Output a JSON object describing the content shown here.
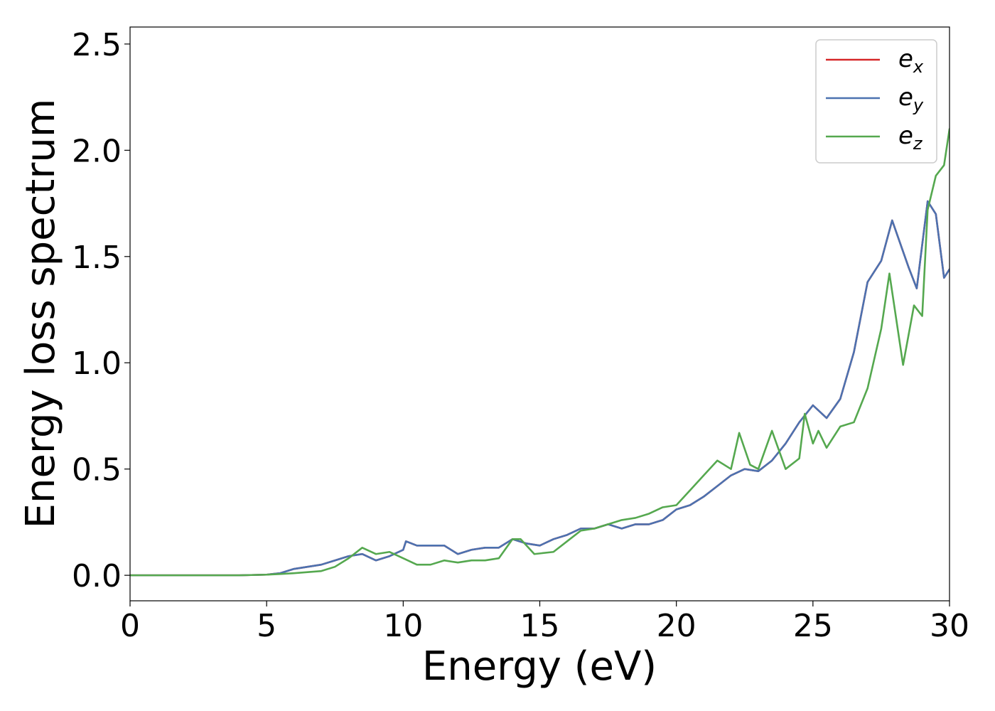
{
  "chart_data": {
    "type": "line",
    "title": "",
    "xlabel": "Energy (eV)",
    "ylabel": "Energy loss spectrum",
    "xlim": [
      0,
      30
    ],
    "ylim": [
      -0.12,
      2.58
    ],
    "xticks": [
      0,
      5,
      10,
      15,
      20,
      25,
      30
    ],
    "xtick_labels": [
      "0",
      "5",
      "10",
      "15",
      "20",
      "25",
      "30"
    ],
    "yticks": [
      0.0,
      0.5,
      1.0,
      1.5,
      2.0,
      2.5
    ],
    "ytick_labels": [
      "0.0",
      "0.5",
      "1.0",
      "1.5",
      "2.0",
      "2.5"
    ],
    "grid": false,
    "legend_position": "top-right",
    "series": [
      {
        "name": "e_x",
        "legend_main": "e",
        "legend_sub": "x",
        "color": "#d62728",
        "x": [
          0,
          2,
          4,
          5,
          5.5,
          6,
          6.5,
          7,
          7.5,
          8,
          8.5,
          9,
          9.5,
          10,
          10.1,
          10.5,
          11,
          11.5,
          12,
          12.5,
          13,
          13.5,
          14,
          14.5,
          15,
          15.5,
          16,
          16.5,
          17,
          17.5,
          18,
          18.5,
          19,
          19.5,
          20,
          20.5,
          21,
          21.5,
          22,
          22.5,
          23,
          23.5,
          24,
          24.5,
          25,
          25.5,
          26,
          26.5,
          27,
          27.5,
          27.9,
          28.5,
          28.8,
          29.2,
          29.5,
          29.8,
          30
        ],
        "y": [
          0.0,
          0.0,
          0.0,
          0.003,
          0.01,
          0.03,
          0.04,
          0.05,
          0.07,
          0.09,
          0.1,
          0.07,
          0.09,
          0.12,
          0.16,
          0.14,
          0.14,
          0.14,
          0.1,
          0.12,
          0.13,
          0.13,
          0.17,
          0.15,
          0.14,
          0.17,
          0.19,
          0.22,
          0.22,
          0.24,
          0.22,
          0.24,
          0.24,
          0.26,
          0.31,
          0.33,
          0.37,
          0.42,
          0.47,
          0.5,
          0.49,
          0.54,
          0.62,
          0.72,
          0.8,
          0.74,
          0.83,
          1.05,
          1.38,
          1.48,
          1.67,
          1.45,
          1.35,
          1.76,
          1.7,
          1.4,
          1.44
        ]
      },
      {
        "name": "e_y",
        "legend_main": "e",
        "legend_sub": "y",
        "color": "#4c72b0",
        "x": [
          0,
          2,
          4,
          5,
          5.5,
          6,
          6.5,
          7,
          7.5,
          8,
          8.5,
          9,
          9.5,
          10,
          10.1,
          10.5,
          11,
          11.5,
          12,
          12.5,
          13,
          13.5,
          14,
          14.5,
          15,
          15.5,
          16,
          16.5,
          17,
          17.5,
          18,
          18.5,
          19,
          19.5,
          20,
          20.5,
          21,
          21.5,
          22,
          22.5,
          23,
          23.5,
          24,
          24.5,
          25,
          25.5,
          26,
          26.5,
          27,
          27.5,
          27.9,
          28.5,
          28.8,
          29.2,
          29.5,
          29.8,
          30
        ],
        "y": [
          0.0,
          0.0,
          0.0,
          0.003,
          0.01,
          0.03,
          0.04,
          0.05,
          0.07,
          0.09,
          0.1,
          0.07,
          0.09,
          0.12,
          0.16,
          0.14,
          0.14,
          0.14,
          0.1,
          0.12,
          0.13,
          0.13,
          0.17,
          0.15,
          0.14,
          0.17,
          0.19,
          0.22,
          0.22,
          0.24,
          0.22,
          0.24,
          0.24,
          0.26,
          0.31,
          0.33,
          0.37,
          0.42,
          0.47,
          0.5,
          0.49,
          0.54,
          0.62,
          0.72,
          0.8,
          0.74,
          0.83,
          1.05,
          1.38,
          1.48,
          1.67,
          1.45,
          1.35,
          1.76,
          1.7,
          1.4,
          1.44
        ]
      },
      {
        "name": "e_z",
        "legend_main": "e",
        "legend_sub": "z",
        "color": "#55a84f",
        "x": [
          0,
          2,
          4,
          5,
          5.5,
          6,
          6.5,
          7,
          7.5,
          8,
          8.5,
          9,
          9.5,
          10,
          10.5,
          11,
          11.5,
          12,
          12.5,
          13,
          13.5,
          14,
          14.3,
          14.8,
          15.5,
          16,
          16.5,
          17,
          17.5,
          18,
          18.5,
          19,
          19.5,
          20,
          20.5,
          21,
          21.5,
          22,
          22.3,
          22.7,
          23,
          23.5,
          24,
          24.5,
          24.7,
          25,
          25.2,
          25.5,
          26,
          26.5,
          27,
          27.5,
          27.8,
          28.3,
          28.7,
          29,
          29.2,
          29.5,
          29.8,
          30
        ],
        "y": [
          0.0,
          0.0,
          0.0,
          0.003,
          0.006,
          0.01,
          0.015,
          0.02,
          0.04,
          0.08,
          0.13,
          0.1,
          0.11,
          0.08,
          0.05,
          0.05,
          0.07,
          0.06,
          0.07,
          0.07,
          0.08,
          0.17,
          0.17,
          0.1,
          0.11,
          0.16,
          0.21,
          0.22,
          0.24,
          0.26,
          0.27,
          0.29,
          0.32,
          0.33,
          0.4,
          0.47,
          0.54,
          0.5,
          0.67,
          0.52,
          0.5,
          0.68,
          0.5,
          0.55,
          0.76,
          0.62,
          0.68,
          0.6,
          0.7,
          0.72,
          0.88,
          1.16,
          1.42,
          0.99,
          1.27,
          1.22,
          1.72,
          1.88,
          1.93,
          2.1
        ]
      }
    ]
  }
}
